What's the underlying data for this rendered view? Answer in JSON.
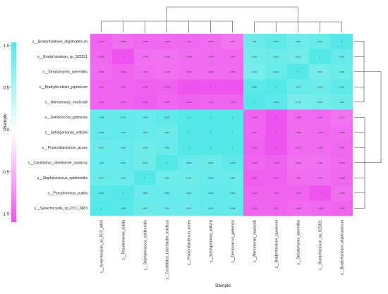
{
  "chart_data": {
    "type": "heatmap",
    "row_labels": [
      "s__Bradyrhizobium_oligotrophicum",
      "s__Bradyrhizobium_sp_S23321",
      "s__Streptomyces_avermitilis",
      "s__Bradyrhizobium_japonicum",
      "s__Alteromonas_macleodii",
      "s__Deinococcus_gobiensis",
      "s__Sphingomonas_wittichii",
      "s__Propionibacterium_acnes",
      "s__Candidatus_Liberibacter_asiaticus",
      "s__Staphylococcus_epidermidis",
      "s__Pseudomonas_putida",
      "s__Synechocystis_sp_PCC_6803"
    ],
    "col_labels": [
      "s__Synechocystis_sp_PCC_6803",
      "s__Pseudomonas_putida",
      "s__Staphylococcus_epidermidis",
      "s__Candidatus_Liberibacter_asiaticus",
      "s__Propionibacterium_acnes",
      "s__Sphingomonas_wittichii",
      "s__Deinococcus_gobiensis",
      "s__Alteromonas_macleodii",
      "s__Bradyrhizobium_japonicum",
      "s__Streptomyces_avermitilis",
      "s__Bradyrhizobium_sp_S23321",
      "s__Bradyrhizobium_oligotrophicum"
    ],
    "values": [
      [
        -0.903,
        -0.855,
        -0.888,
        -0.875,
        -0.89,
        -0.863,
        -0.813,
        0.86,
        0.937,
        0.854,
        0.897,
        1
      ],
      [
        -0.888,
        -1,
        -0.848,
        -0.828,
        -0.858,
        -0.878,
        -0.88,
        0.829,
        0.862,
        0.811,
        1,
        0.897
      ],
      [
        -0.868,
        -0.911,
        -0.86,
        -0.838,
        -0.873,
        -0.858,
        -0.869,
        0.793,
        0.879,
        1,
        0.811,
        0.854
      ],
      [
        -0.91,
        -0.92,
        -0.937,
        -0.932,
        -1,
        -1,
        -1,
        0.966,
        1,
        0.879,
        0.862,
        0.937
      ],
      [
        -0.919,
        -0.916,
        -0.947,
        -0.899,
        -0.924,
        -0.91,
        -0.908,
        1,
        0.966,
        0.793,
        0.829,
        0.86
      ],
      [
        0.908,
        0.918,
        0.884,
        0.935,
        1,
        1,
        1,
        -0.908,
        -1,
        -0.869,
        -0.88,
        -0.813
      ],
      [
        0.909,
        0.918,
        0.893,
        0.863,
        1,
        1,
        1,
        -0.91,
        -1,
        -0.858,
        -0.878,
        -0.863
      ],
      [
        0.873,
        0.882,
        0.838,
        0.883,
        1,
        1,
        1,
        -0.924,
        -1,
        -0.873,
        -0.858,
        -0.89
      ],
      [
        0.88,
        0.881,
        0.845,
        1,
        0.883,
        0.863,
        0.935,
        -0.899,
        -0.932,
        -0.838,
        -0.828,
        -0.875
      ],
      [
        0.867,
        0.868,
        1,
        0.845,
        0.838,
        0.893,
        0.884,
        -0.947,
        -0.937,
        -0.86,
        -0.848,
        -0.888
      ],
      [
        0.969,
        1,
        0.868,
        0.881,
        0.882,
        0.918,
        0.918,
        -0.916,
        -0.92,
        -0.911,
        -1,
        -0.855
      ],
      [
        1,
        0.969,
        0.867,
        0.88,
        0.873,
        0.909,
        0.908,
        -0.919,
        -0.91,
        -0.868,
        -0.888,
        -0.903
      ]
    ],
    "xlabel": "Sample",
    "legend_title": "Sample",
    "legend_ticks": [
      "1.0",
      "0.5",
      "0.0",
      "-0.5",
      "-1.0"
    ],
    "zlim": [
      -1,
      1
    ],
    "colors": {
      "high": "#55e8e8",
      "mid": "#ffffff",
      "low": "#ee55ee"
    }
  }
}
